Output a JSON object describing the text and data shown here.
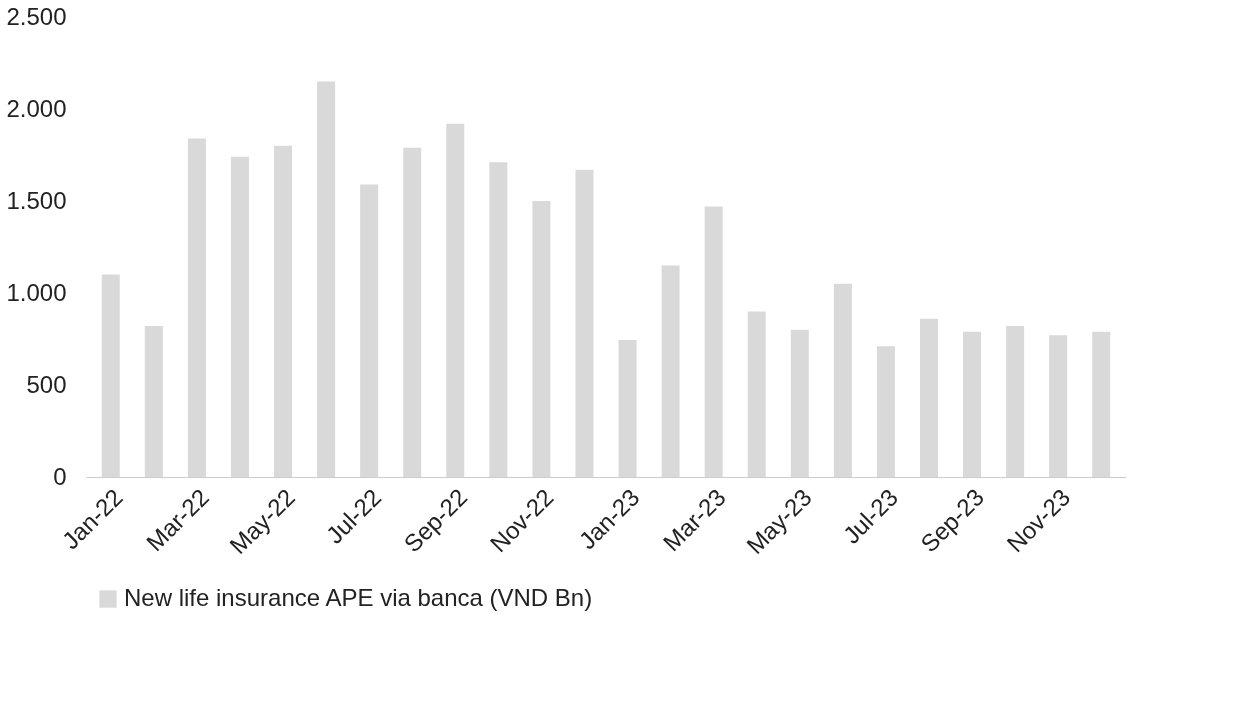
{
  "chart_data": {
    "type": "bar",
    "categories": [
      "Jan-22",
      null,
      "Mar-22",
      null,
      "May-22",
      null,
      "Jul-22",
      null,
      "Sep-22",
      null,
      "Nov-22",
      null,
      "Jan-23",
      null,
      "Mar-23",
      null,
      "May-23",
      null,
      "Jul-23",
      null,
      "Sep-23",
      null,
      "Nov-23",
      null
    ],
    "series": [
      {
        "name": "New life insurance APE via banca (VND Bn)",
        "color": "#d9d9d9",
        "values": [
          1100,
          820,
          1840,
          1740,
          1800,
          2150,
          1590,
          1790,
          1920,
          1710,
          1500,
          1670,
          745,
          1150,
          1470,
          900,
          800,
          1050,
          710,
          860,
          790,
          820,
          770,
          790
        ]
      }
    ],
    "ylim": [
      0,
      2500
    ],
    "yticks": [
      0,
      500,
      {
        "value": 1000,
        "label": "1.000"
      },
      {
        "value": 1500,
        "label": "1.500"
      },
      {
        "value": 2000,
        "label": "2.000"
      },
      {
        "value": 2500,
        "label": "2.500"
      }
    ],
    "grid": false,
    "legend": "bottom"
  }
}
